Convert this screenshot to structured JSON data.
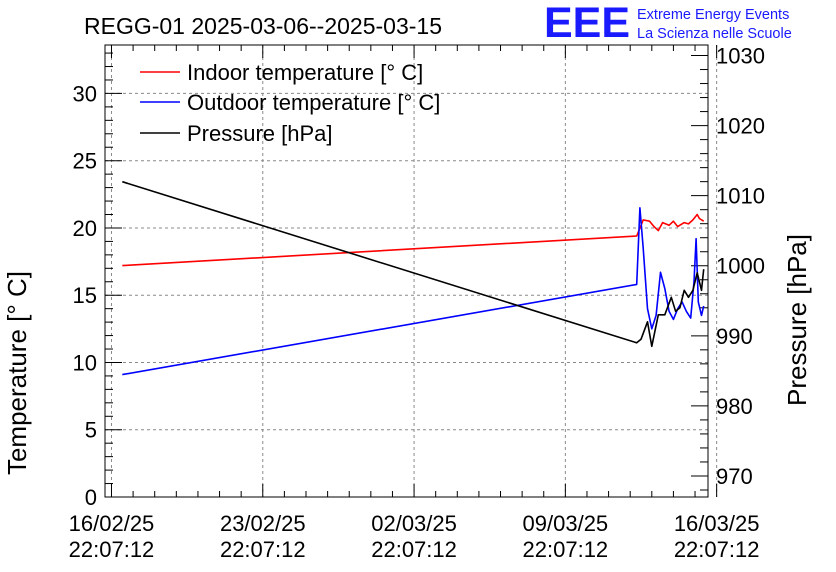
{
  "chart_data": {
    "type": "line",
    "title": "REGG-01 2025-03-06--2025-03-15",
    "logo_text": "EEE",
    "logo_line1": "Extreme Energy Events",
    "logo_line2": "La Scienza nelle Scuole",
    "ylabel_left": "Temperature [° C]",
    "ylabel_right": "Pressure [hPa]",
    "xlim": [
      -0.3,
      27.6
    ],
    "ylim_left": [
      0,
      33.6
    ],
    "ylim_right": [
      967,
      1031.5
    ],
    "xticks": [
      {
        "x": 0,
        "line1": "16/02/25",
        "line2": "22:07:12"
      },
      {
        "x": 7,
        "line1": "23/02/25",
        "line2": "22:07:12"
      },
      {
        "x": 14,
        "line1": "02/03/25",
        "line2": "22:07:12"
      },
      {
        "x": 21,
        "line1": "09/03/25",
        "line2": "22:07:12"
      },
      {
        "x": 28,
        "line1": "16/03/25",
        "line2": "22:07:12"
      }
    ],
    "yticks_left": [
      0,
      5,
      10,
      15,
      20,
      25,
      30
    ],
    "yticks_right": [
      970,
      980,
      990,
      1000,
      1010,
      1020,
      1030
    ],
    "grid": true,
    "legend_position": "top-left",
    "colors": {
      "indoor": "#ff0000",
      "outdoor": "#0000ff",
      "pressure": "#000000",
      "logo": "#1a1aff"
    },
    "series": [
      {
        "name": "Indoor temperature [° C]",
        "axis": "left",
        "x": [
          0.5,
          24.3,
          24.6,
          24.9,
          25.1,
          25.3,
          25.5,
          25.8,
          26.0,
          26.2,
          26.5,
          26.7,
          26.9,
          27.1,
          27.2,
          27.4
        ],
        "values": [
          17.2,
          19.4,
          20.6,
          20.5,
          20.1,
          19.8,
          20.4,
          20.2,
          20.5,
          20.1,
          20.4,
          20.3,
          20.6,
          21.0,
          20.7,
          20.5
        ]
      },
      {
        "name": "Outdoor temperature [° C]",
        "axis": "left",
        "x": [
          0.5,
          24.3,
          24.45,
          24.6,
          24.8,
          25.0,
          25.2,
          25.4,
          25.6,
          25.8,
          26.0,
          26.2,
          26.4,
          26.6,
          26.8,
          26.95,
          27.05,
          27.15,
          27.3,
          27.4
        ],
        "values": [
          9.1,
          15.8,
          21.5,
          18.5,
          14.0,
          12.5,
          13.5,
          16.7,
          15.5,
          13.8,
          13.2,
          14.0,
          14.5,
          13.8,
          13.3,
          16.0,
          19.2,
          14.5,
          13.5,
          14.2
        ]
      },
      {
        "name": "Pressure [hPa]",
        "axis": "right",
        "x": [
          0.5,
          24.3,
          24.5,
          24.8,
          25.0,
          25.3,
          25.6,
          25.9,
          26.1,
          26.3,
          26.5,
          26.7,
          26.9,
          27.1,
          27.3,
          27.4
        ],
        "values": [
          1012,
          989,
          989.5,
          992,
          988.5,
          993,
          993,
          995.5,
          993.5,
          994,
          996.5,
          995.5,
          996.5,
          999,
          996.5,
          999.5
        ]
      }
    ]
  }
}
